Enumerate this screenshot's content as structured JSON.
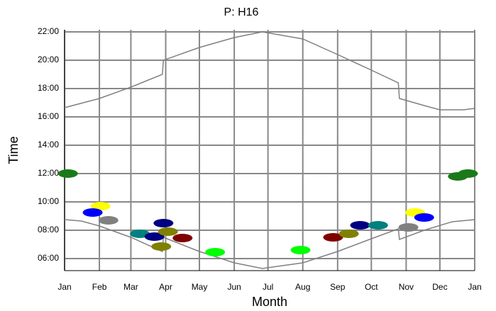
{
  "chart_data": {
    "type": "line",
    "title": "P: H16",
    "x_label": "Month",
    "y_label": "Time",
    "xlim": [
      0,
      365
    ],
    "ylim": [
      5.15,
      22.15
    ],
    "xticks": [
      {
        "value": 0,
        "label": "Jan"
      },
      {
        "value": 31,
        "label": "Feb"
      },
      {
        "value": 59,
        "label": "Mar"
      },
      {
        "value": 90,
        "label": "Apr"
      },
      {
        "value": 120,
        "label": "May"
      },
      {
        "value": 151,
        "label": "Jun"
      },
      {
        "value": 181,
        "label": "Jul"
      },
      {
        "value": 212,
        "label": "Aug"
      },
      {
        "value": 243,
        "label": "Sep"
      },
      {
        "value": 273,
        "label": "Oct"
      },
      {
        "value": 304,
        "label": "Nov"
      },
      {
        "value": 334,
        "label": "Dec"
      },
      {
        "value": 365,
        "label": "Jan"
      }
    ],
    "yticks": [
      {
        "value": 6,
        "label": "06:00"
      },
      {
        "value": 8,
        "label": "08:00"
      },
      {
        "value": 10,
        "label": "10:00"
      },
      {
        "value": 12,
        "label": "12:00"
      },
      {
        "value": 14,
        "label": "14:00"
      },
      {
        "value": 16,
        "label": "16:00"
      },
      {
        "value": 18,
        "label": "18:00"
      },
      {
        "value": 20,
        "label": "20:00"
      },
      {
        "value": 22,
        "label": "22:00"
      }
    ],
    "grid": true,
    "series": [
      {
        "color": "#808080",
        "x": [
          0,
          31,
          59,
          87,
          88,
          120,
          151,
          176,
          212,
          243,
          273,
          297,
          298,
          320,
          334,
          355,
          365
        ],
        "values": [
          16.65,
          17.3,
          18.1,
          19.0,
          20.0,
          20.9,
          21.6,
          22.0,
          21.5,
          20.4,
          19.3,
          18.4,
          17.3,
          16.8,
          16.5,
          16.5,
          16.6
        ]
      },
      {
        "color": "#808080",
        "x": [
          0,
          15,
          31,
          59,
          87,
          88,
          120,
          151,
          176,
          212,
          243,
          273,
          297,
          298,
          320,
          345,
          365
        ],
        "values": [
          8.75,
          8.65,
          8.3,
          7.5,
          6.5,
          7.5,
          6.5,
          5.7,
          5.3,
          5.7,
          6.5,
          7.4,
          8.1,
          7.35,
          8.0,
          8.6,
          8.75
        ]
      }
    ],
    "points": {
      "x": [
        3,
        32,
        25,
        39,
        67,
        80,
        88,
        92,
        86,
        105,
        134,
        210,
        239,
        253,
        263,
        279,
        312,
        320,
        306,
        350,
        359
      ],
      "values": [
        12.0,
        9.7,
        9.25,
        8.7,
        7.75,
        7.55,
        8.5,
        7.9,
        6.85,
        7.45,
        6.45,
        6.6,
        7.5,
        7.75,
        8.35,
        8.35,
        9.25,
        8.9,
        8.2,
        11.8,
        12.0
      ],
      "colors": [
        "#1a7a1a",
        "#ffff00",
        "#0000ff",
        "#808080",
        "#008080",
        "#000080",
        "#000080",
        "#808000",
        "#808000",
        "#800000",
        "#00ff00",
        "#00ff00",
        "#800000",
        "#808000",
        "#000080",
        "#008080",
        "#ffff00",
        "#0000ff",
        "#808080",
        "#1a7a1a",
        "#1a7a1a"
      ]
    }
  }
}
